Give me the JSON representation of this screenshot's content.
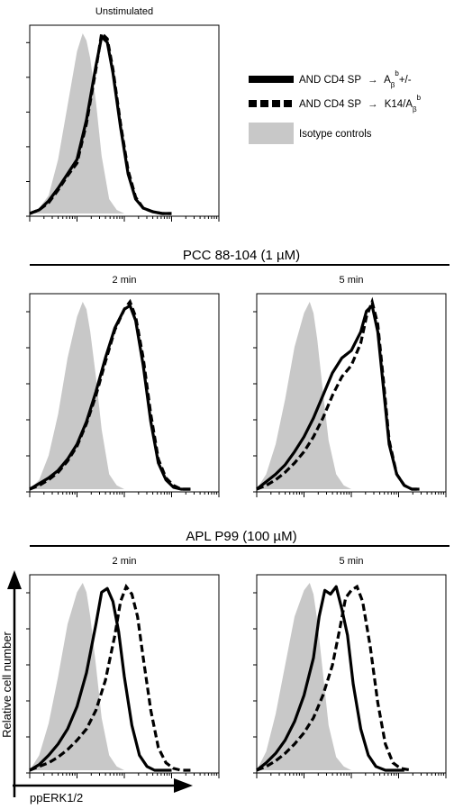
{
  "labels": {
    "group_pcc": "PCC 88-104 (1 µM)",
    "group_apl": "APL P99 (100 µM)",
    "ylabel": "Relative cell number",
    "xlabel": "ppERK1/2"
  },
  "legend": {
    "entries": [
      {
        "label_prefix": "AND CD4 SP",
        "arrow": "→",
        "target_base": "A",
        "target_sub": "β",
        "target_sup": "b",
        "target_tail": "+/-",
        "style": "solid"
      },
      {
        "label_prefix": "AND CD4 SP",
        "arrow": "→",
        "target_base": "K14/A",
        "target_sub": "β",
        "target_sup": "b",
        "target_tail": "",
        "style": "dashed"
      },
      {
        "label_prefix": "Isotype controls",
        "arrow": "",
        "target_base": "",
        "target_sub": "",
        "target_sup": "",
        "target_tail": "",
        "style": "filled"
      }
    ],
    "colors": {
      "solid": "#000000",
      "dashed": "#000000",
      "filled": "#c8c8c8"
    }
  },
  "chart_data": [
    {
      "type": "area",
      "title": "Unstimulated",
      "x_scale": "log",
      "xlim": [
        0,
        1
      ],
      "ylim": [
        0,
        1
      ],
      "series": [
        {
          "name": "Isotype controls",
          "x": [
            0,
            0.05,
            0.1,
            0.15,
            0.2,
            0.25,
            0.28,
            0.3,
            0.32,
            0.35,
            0.38,
            0.42,
            0.46,
            0.5,
            0.55,
            0.6
          ],
          "y": [
            0,
            0.03,
            0.1,
            0.3,
            0.6,
            0.9,
            1,
            0.96,
            0.86,
            0.62,
            0.32,
            0.08,
            0.02,
            0,
            0,
            0
          ]
        },
        {
          "name": "AND CD4 SP → Aβb+/-",
          "x": [
            0,
            0.05,
            0.1,
            0.15,
            0.2,
            0.25,
            0.3,
            0.35,
            0.38,
            0.41,
            0.44,
            0.48,
            0.52,
            0.56,
            0.6,
            0.65,
            0.7,
            0.75
          ],
          "y": [
            0,
            0.02,
            0.07,
            0.14,
            0.22,
            0.3,
            0.52,
            0.82,
            0.98,
            0.95,
            0.78,
            0.48,
            0.22,
            0.08,
            0.03,
            0.01,
            0,
            0
          ]
        },
        {
          "name": "AND CD4 SP → K14/Aβb",
          "x": [
            0,
            0.05,
            0.1,
            0.15,
            0.2,
            0.25,
            0.3,
            0.35,
            0.38,
            0.41,
            0.44,
            0.48,
            0.52,
            0.56,
            0.6,
            0.65,
            0.7,
            0.75
          ],
          "y": [
            0,
            0.02,
            0.06,
            0.13,
            0.21,
            0.28,
            0.5,
            0.8,
            1,
            0.97,
            0.8,
            0.5,
            0.24,
            0.09,
            0.03,
            0.01,
            0,
            0
          ]
        }
      ]
    },
    {
      "type": "area",
      "title": "2 min",
      "x_scale": "log",
      "xlim": [
        0,
        1
      ],
      "ylim": [
        0,
        1
      ],
      "series": [
        {
          "name": "Isotype controls",
          "x": [
            0,
            0.05,
            0.1,
            0.15,
            0.2,
            0.25,
            0.28,
            0.3,
            0.32,
            0.35,
            0.38,
            0.42,
            0.46,
            0.5,
            0.55,
            0.6
          ],
          "y": [
            0,
            0.05,
            0.18,
            0.4,
            0.7,
            0.92,
            1,
            0.96,
            0.84,
            0.6,
            0.32,
            0.08,
            0.02,
            0,
            0,
            0
          ]
        },
        {
          "name": "AND CD4 SP → Aβb+/-",
          "x": [
            0,
            0.05,
            0.1,
            0.15,
            0.2,
            0.25,
            0.3,
            0.35,
            0.4,
            0.45,
            0.5,
            0.53,
            0.56,
            0.6,
            0.64,
            0.68,
            0.72,
            0.76,
            0.8,
            0.85
          ],
          "y": [
            0,
            0.03,
            0.06,
            0.1,
            0.16,
            0.24,
            0.36,
            0.52,
            0.7,
            0.86,
            0.96,
            0.98,
            0.9,
            0.66,
            0.36,
            0.14,
            0.05,
            0.01,
            0,
            0
          ]
        },
        {
          "name": "AND CD4 SP → K14/Aβb",
          "x": [
            0,
            0.05,
            0.1,
            0.15,
            0.2,
            0.25,
            0.3,
            0.35,
            0.4,
            0.45,
            0.5,
            0.53,
            0.56,
            0.6,
            0.64,
            0.68,
            0.72,
            0.76,
            0.8,
            0.85
          ],
          "y": [
            0,
            0.02,
            0.05,
            0.09,
            0.15,
            0.23,
            0.35,
            0.5,
            0.68,
            0.85,
            0.96,
            1,
            0.92,
            0.7,
            0.4,
            0.16,
            0.06,
            0.02,
            0,
            0
          ]
        }
      ]
    },
    {
      "type": "area",
      "title": "5 min",
      "x_scale": "log",
      "xlim": [
        0,
        1
      ],
      "ylim": [
        0,
        1
      ],
      "series": [
        {
          "name": "Isotype controls",
          "x": [
            0,
            0.05,
            0.1,
            0.15,
            0.2,
            0.25,
            0.28,
            0.3,
            0.32,
            0.35,
            0.38,
            0.42,
            0.46,
            0.5,
            0.55,
            0.6
          ],
          "y": [
            0,
            0.08,
            0.24,
            0.48,
            0.76,
            0.94,
            1,
            0.94,
            0.8,
            0.52,
            0.26,
            0.08,
            0.02,
            0,
            0,
            0
          ]
        },
        {
          "name": "AND CD4 SP → Aβb+/-",
          "x": [
            0,
            0.05,
            0.1,
            0.15,
            0.2,
            0.25,
            0.3,
            0.35,
            0.4,
            0.45,
            0.5,
            0.55,
            0.58,
            0.61,
            0.64,
            0.67,
            0.7,
            0.74,
            0.78,
            0.82,
            0.86
          ],
          "y": [
            0,
            0.04,
            0.08,
            0.13,
            0.2,
            0.28,
            0.38,
            0.5,
            0.62,
            0.7,
            0.74,
            0.84,
            0.95,
            0.98,
            0.84,
            0.54,
            0.24,
            0.08,
            0.02,
            0,
            0
          ]
        },
        {
          "name": "AND CD4 SP → K14/Aβb",
          "x": [
            0,
            0.05,
            0.1,
            0.15,
            0.2,
            0.25,
            0.3,
            0.35,
            0.4,
            0.45,
            0.5,
            0.55,
            0.58,
            0.61,
            0.64,
            0.67,
            0.7,
            0.74,
            0.78,
            0.82,
            0.86
          ],
          "y": [
            0,
            0.02,
            0.05,
            0.09,
            0.14,
            0.2,
            0.28,
            0.38,
            0.5,
            0.6,
            0.66,
            0.78,
            0.92,
            1,
            0.88,
            0.58,
            0.26,
            0.08,
            0.02,
            0,
            0
          ]
        }
      ]
    },
    {
      "type": "area",
      "title": "2 min",
      "x_scale": "log",
      "xlim": [
        0,
        1
      ],
      "ylim": [
        0,
        1
      ],
      "series": [
        {
          "name": "Isotype controls",
          "x": [
            0,
            0.05,
            0.1,
            0.15,
            0.2,
            0.25,
            0.28,
            0.3,
            0.32,
            0.35,
            0.38,
            0.42,
            0.46,
            0.5,
            0.55,
            0.6
          ],
          "y": [
            0,
            0.08,
            0.25,
            0.5,
            0.78,
            0.95,
            1,
            0.95,
            0.82,
            0.56,
            0.28,
            0.08,
            0.02,
            0,
            0,
            0
          ]
        },
        {
          "name": "AND CD4 SP → Aβb+/-",
          "x": [
            0,
            0.05,
            0.1,
            0.15,
            0.2,
            0.25,
            0.3,
            0.35,
            0.38,
            0.41,
            0.44,
            0.47,
            0.5,
            0.54,
            0.58,
            0.62,
            0.66,
            0.7,
            0.75
          ],
          "y": [
            0,
            0.03,
            0.08,
            0.14,
            0.22,
            0.34,
            0.52,
            0.78,
            0.95,
            0.97,
            0.9,
            0.74,
            0.5,
            0.24,
            0.08,
            0.02,
            0,
            0,
            0
          ]
        },
        {
          "name": "AND CD4 SP → K14/Aβb",
          "x": [
            0,
            0.05,
            0.1,
            0.15,
            0.2,
            0.25,
            0.3,
            0.35,
            0.4,
            0.45,
            0.48,
            0.51,
            0.54,
            0.57,
            0.6,
            0.64,
            0.68,
            0.72,
            0.76,
            0.8,
            0.85
          ],
          "y": [
            0,
            0.02,
            0.04,
            0.07,
            0.11,
            0.16,
            0.22,
            0.32,
            0.48,
            0.72,
            0.9,
            0.98,
            0.94,
            0.82,
            0.6,
            0.32,
            0.12,
            0.04,
            0.01,
            0,
            0
          ]
        }
      ]
    },
    {
      "type": "area",
      "title": "5 min",
      "x_scale": "log",
      "xlim": [
        0,
        1
      ],
      "ylim": [
        0,
        1
      ],
      "series": [
        {
          "name": "Isotype controls",
          "x": [
            0,
            0.05,
            0.1,
            0.15,
            0.2,
            0.25,
            0.28,
            0.3,
            0.32,
            0.35,
            0.38,
            0.42,
            0.46,
            0.5,
            0.55,
            0.6
          ],
          "y": [
            0,
            0.1,
            0.3,
            0.56,
            0.82,
            0.96,
            1,
            0.94,
            0.8,
            0.52,
            0.24,
            0.07,
            0.02,
            0,
            0,
            0
          ]
        },
        {
          "name": "AND CD4 SP → Aβb+/-",
          "x": [
            0,
            0.05,
            0.1,
            0.15,
            0.2,
            0.25,
            0.3,
            0.33,
            0.36,
            0.39,
            0.42,
            0.45,
            0.48,
            0.51,
            0.55,
            0.59,
            0.63,
            0.68,
            0.72,
            0.78
          ],
          "y": [
            0,
            0.04,
            0.09,
            0.16,
            0.26,
            0.4,
            0.6,
            0.82,
            0.96,
            0.94,
            0.98,
            0.86,
            0.72,
            0.46,
            0.22,
            0.08,
            0.02,
            0,
            0,
            0
          ]
        },
        {
          "name": "AND CD4 SP → K14/Aβb",
          "x": [
            0,
            0.05,
            0.1,
            0.15,
            0.2,
            0.25,
            0.3,
            0.35,
            0.4,
            0.44,
            0.47,
            0.5,
            0.53,
            0.56,
            0.6,
            0.64,
            0.68,
            0.72,
            0.76,
            0.82
          ],
          "y": [
            0,
            0.02,
            0.05,
            0.09,
            0.14,
            0.2,
            0.28,
            0.4,
            0.56,
            0.76,
            0.92,
            0.96,
            0.98,
            0.9,
            0.66,
            0.36,
            0.14,
            0.04,
            0.01,
            0
          ]
        }
      ]
    }
  ]
}
